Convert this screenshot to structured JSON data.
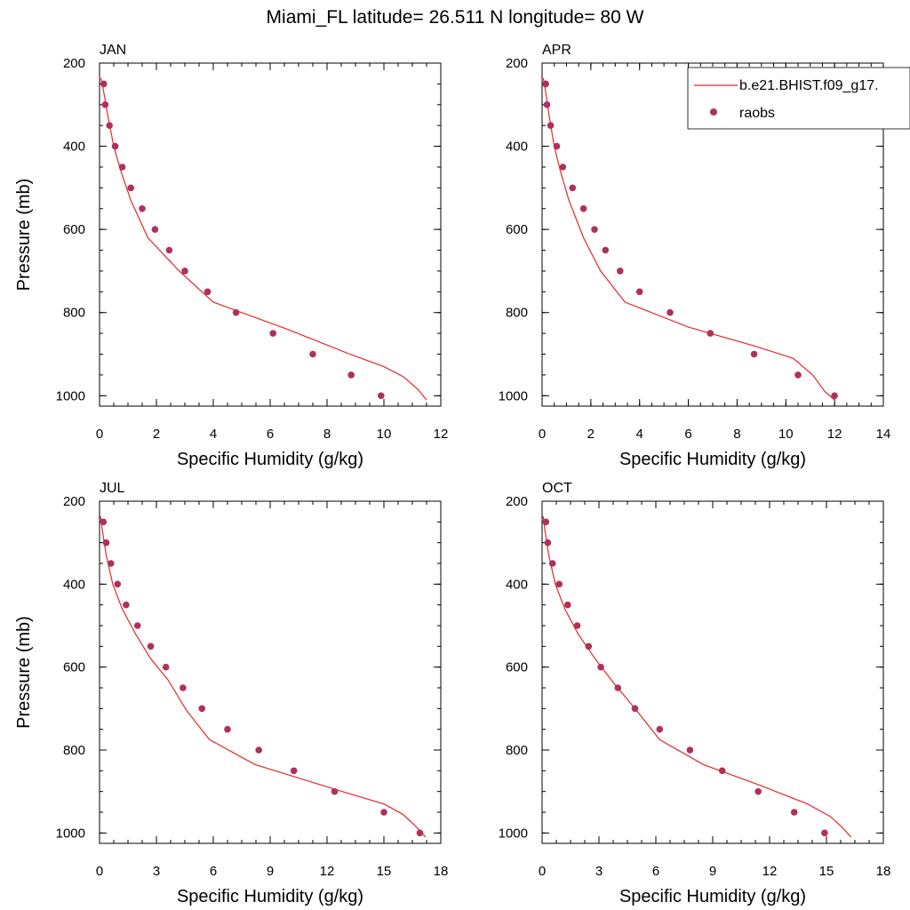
{
  "figure": {
    "title": "Miami_FL  latitude= 26.511 N longitude= 80 W",
    "legend": {
      "placement": "top-right of APR panel",
      "items": [
        {
          "label": "b.e21.BHIST.f09_g17.",
          "style": "line",
          "color": "#e8262a"
        },
        {
          "label": "raobs",
          "style": "marker",
          "color": "#b0305a"
        }
      ]
    }
  },
  "chart_data": [
    {
      "type": "line",
      "panel": "JAN",
      "xlabel": "Specific Humidity (g/kg)",
      "ylabel": "Pressure (mb)",
      "xlim": [
        0,
        12
      ],
      "ylim": [
        1025,
        200
      ],
      "x_ticks": [
        0,
        2,
        4,
        6,
        8,
        10,
        12
      ],
      "y_ticks": [
        200,
        400,
        600,
        800,
        1000
      ],
      "y_reversed": true,
      "series": [
        {
          "name": "b.e21.BHIST.f09_g17.",
          "kind": "line",
          "x": [
            0.05,
            0.15,
            0.3,
            0.5,
            0.75,
            1.1,
            1.7,
            2.8,
            4.0,
            6.6,
            8.8,
            10.0,
            10.7,
            11.2,
            11.5
          ],
          "y": [
            236,
            270,
            330,
            400,
            460,
            530,
            620,
            700,
            775,
            840,
            900,
            930,
            955,
            985,
            1010
          ]
        },
        {
          "name": "raobs",
          "kind": "scatter",
          "x": [
            0.15,
            0.2,
            0.35,
            0.55,
            0.8,
            1.1,
            1.5,
            1.95,
            2.45,
            3.0,
            3.8,
            4.8,
            6.1,
            7.5,
            8.85,
            9.9
          ],
          "y": [
            250,
            300,
            350,
            400,
            450,
            500,
            550,
            600,
            650,
            700,
            750,
            800,
            850,
            900,
            950,
            1000
          ]
        }
      ]
    },
    {
      "type": "line",
      "panel": "APR",
      "xlabel": "Specific Humidity (g/kg)",
      "ylabel": "",
      "xlim": [
        0,
        14
      ],
      "ylim": [
        1025,
        200
      ],
      "x_ticks": [
        0,
        2,
        4,
        6,
        8,
        10,
        12,
        14
      ],
      "y_ticks": [
        200,
        400,
        600,
        800,
        1000
      ],
      "y_reversed": true,
      "series": [
        {
          "name": "b.e21.BHIST.f09_g17.",
          "kind": "line",
          "x": [
            0.05,
            0.15,
            0.3,
            0.5,
            0.75,
            1.1,
            1.7,
            2.4,
            3.4,
            6.0,
            8.7,
            10.3,
            11.1,
            11.6,
            12.0
          ],
          "y": [
            236,
            270,
            330,
            400,
            460,
            530,
            620,
            700,
            775,
            835,
            880,
            910,
            950,
            990,
            1010
          ]
        },
        {
          "name": "raobs",
          "kind": "scatter",
          "x": [
            0.15,
            0.2,
            0.35,
            0.6,
            0.85,
            1.25,
            1.7,
            2.15,
            2.6,
            3.2,
            4.0,
            5.25,
            6.9,
            8.7,
            10.5,
            12.0
          ],
          "y": [
            250,
            300,
            350,
            400,
            450,
            500,
            550,
            600,
            650,
            700,
            750,
            800,
            850,
            900,
            950,
            1000
          ]
        }
      ]
    },
    {
      "type": "line",
      "panel": "JUL",
      "xlabel": "Specific Humidity (g/kg)",
      "ylabel": "Pressure (mb)",
      "xlim": [
        0,
        18
      ],
      "ylim": [
        1025,
        200
      ],
      "x_ticks": [
        0,
        3,
        6,
        9,
        12,
        15,
        18
      ],
      "y_ticks": [
        200,
        400,
        600,
        800,
        1000
      ],
      "y_reversed": true,
      "series": [
        {
          "name": "b.e21.BHIST.f09_g17.",
          "kind": "line",
          "x": [
            0.05,
            0.15,
            0.35,
            0.7,
            1.2,
            1.9,
            2.7,
            3.6,
            4.6,
            5.8,
            8.2,
            12.8,
            15.0,
            16.0,
            16.7,
            17.2
          ],
          "y": [
            236,
            270,
            330,
            400,
            460,
            520,
            580,
            630,
            705,
            775,
            835,
            900,
            930,
            955,
            985,
            1010
          ]
        },
        {
          "name": "raobs",
          "kind": "scatter",
          "x": [
            0.2,
            0.35,
            0.6,
            0.95,
            1.4,
            2.0,
            2.7,
            3.5,
            4.4,
            5.4,
            6.75,
            8.4,
            10.25,
            12.4,
            15.0,
            16.9
          ],
          "y": [
            250,
            300,
            350,
            400,
            450,
            500,
            550,
            600,
            650,
            700,
            750,
            800,
            850,
            900,
            950,
            1000
          ]
        }
      ]
    },
    {
      "type": "line",
      "panel": "OCT",
      "xlabel": "Specific Humidity (g/kg)",
      "ylabel": "",
      "xlim": [
        0,
        18
      ],
      "ylim": [
        1025,
        200
      ],
      "x_ticks": [
        0,
        3,
        6,
        9,
        12,
        15,
        18
      ],
      "y_ticks": [
        200,
        400,
        600,
        800,
        1000
      ],
      "y_reversed": true,
      "series": [
        {
          "name": "b.e21.BHIST.f09_g17.",
          "kind": "line",
          "x": [
            0.05,
            0.15,
            0.35,
            0.7,
            1.2,
            1.9,
            2.8,
            3.8,
            4.9,
            6.2,
            8.5,
            11.5,
            14.0,
            15.2,
            15.8,
            16.3
          ],
          "y": [
            236,
            270,
            330,
            400,
            460,
            520,
            580,
            640,
            700,
            775,
            835,
            885,
            930,
            960,
            985,
            1010
          ]
        },
        {
          "name": "raobs",
          "kind": "scatter",
          "x": [
            0.2,
            0.3,
            0.55,
            0.9,
            1.35,
            1.85,
            2.45,
            3.1,
            4.0,
            4.9,
            6.2,
            7.8,
            9.5,
            11.4,
            13.3,
            14.9
          ],
          "y": [
            250,
            300,
            350,
            400,
            450,
            500,
            550,
            600,
            650,
            700,
            750,
            800,
            850,
            900,
            950,
            1000
          ]
        }
      ]
    }
  ]
}
